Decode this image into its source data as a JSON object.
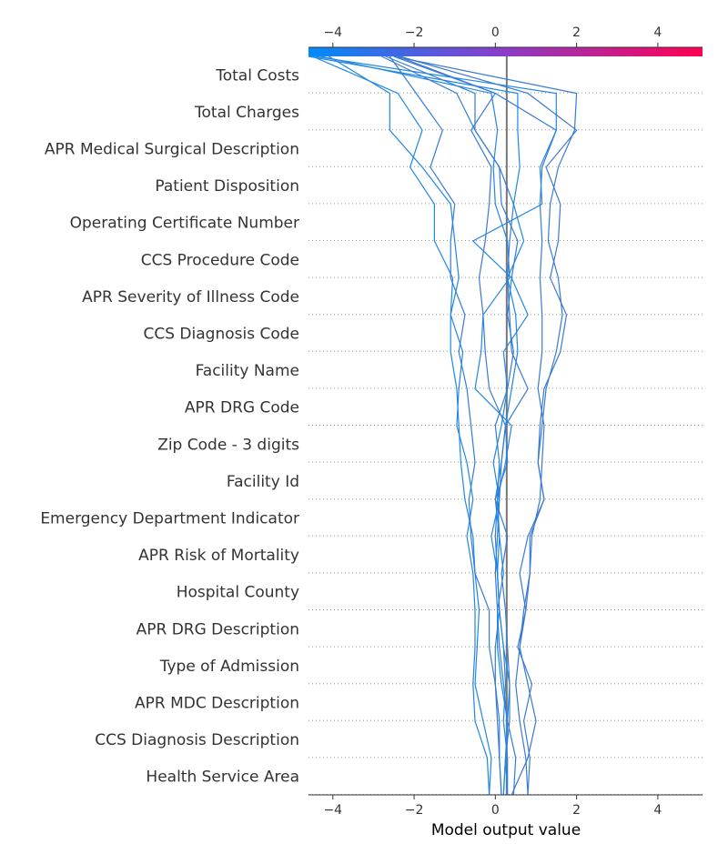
{
  "chart_data": {
    "type": "line",
    "variant": "shap-decision-plot",
    "xlabel": "Model output value",
    "xlim": [
      -4.6,
      5.1
    ],
    "x_ticks": [
      -4,
      -2,
      0,
      2,
      4
    ],
    "x_tick_labels": [
      "−4",
      "−2",
      "0",
      "2",
      "4"
    ],
    "base_value": 0.28,
    "colorbar": {
      "position": "top",
      "low_color": "#008bfb",
      "high_color": "#ff0052"
    },
    "grid": "dotted horizontal per feature",
    "features": [
      "Total Costs",
      "Total Charges",
      "APR Medical Surgical Description",
      "Patient Disposition",
      "Operating Certificate Number",
      "CCS Procedure Code",
      "APR Severity of Illness Code",
      "CCS Diagnosis Code",
      "Facility Name",
      "APR DRG Code",
      "Zip Code - 3 digits",
      "Facility Id",
      "Emergency Department Indicator",
      "APR Risk of Mortality",
      "Hospital County",
      "APR DRG Description",
      "Type of Admission",
      "APR MDC Description",
      "CCS Diagnosis Description",
      "Health Service Area"
    ],
    "series": [
      {
        "values": [
          0.2,
          0.25,
          0.3,
          0.35,
          0.2,
          0.1,
          0.05,
          0.1,
          0.0,
          0.15,
          0.25,
          0.4,
          0.55,
          0.5,
          0.3,
          0.7,
          0.45,
          0.6,
          0.55,
          0.55,
          -4.6
        ]
      },
      {
        "values": [
          0.8,
          0.85,
          0.7,
          0.9,
          0.55,
          0.75,
          0.6,
          0.8,
          1.2,
          1.05,
          1.15,
          1.25,
          1.5,
          1.65,
          1.55,
          1.3,
          1.35,
          1.55,
          1.95,
          2.0,
          -2.5
        ]
      },
      {
        "values": [
          0.8,
          0.75,
          0.6,
          0.5,
          0.6,
          0.75,
          0.85,
          0.9,
          1.1,
          1.15,
          1.2,
          1.05,
          1.15,
          1.15,
          1.1,
          1.15,
          1.1,
          1.15,
          1.5,
          0.0,
          -2.5
        ]
      },
      {
        "values": [
          0.3,
          0.25,
          0.35,
          0.35,
          0.3,
          0.25,
          0.15,
          0.3,
          0.0,
          0.3,
          0.25,
          -0.15,
          -0.25,
          -0.3,
          -0.4,
          -0.25,
          -0.15,
          -0.1,
          -0.6,
          0.0,
          -2.4
        ]
      },
      {
        "values": [
          0.45,
          0.5,
          0.3,
          0.2,
          0.1,
          0.05,
          0.0,
          0.05,
          0.1,
          0.15,
          0.25,
          0.8,
          0.4,
          0.35,
          0.3,
          0.35,
          0.45,
          0.1,
          -0.5,
          -0.5,
          -2.7
        ]
      },
      {
        "values": [
          -0.15,
          -0.1,
          -0.3,
          -0.5,
          -0.45,
          -0.4,
          -0.5,
          -0.55,
          -0.75,
          -0.85,
          -0.9,
          -0.95,
          -1.1,
          -1.1,
          -1.05,
          -1.5,
          -1.5,
          -2.1,
          -1.8,
          -2.4,
          -4.5
        ]
      },
      {
        "values": [
          0.3,
          0.3,
          0.2,
          0.25,
          0.2,
          0.1,
          0.05,
          -0.1,
          0.1,
          -0.05,
          0.15,
          0.3,
          0.2,
          0.8,
          0.4,
          -0.55,
          1.15,
          1.1,
          1.5,
          1.5,
          -4.45
        ]
      },
      {
        "values": [
          0.4,
          0.8,
          1.0,
          0.8,
          0.6,
          0.7,
          0.85,
          0.85,
          1.2,
          1.05,
          1.1,
          1.2,
          1.6,
          1.75,
          1.35,
          1.55,
          1.6,
          1.25,
          2.0,
          0.8,
          -2.35
        ]
      },
      {
        "values": [
          0.15,
          0.1,
          0.05,
          0.0,
          -0.15,
          -0.15,
          -0.5,
          -0.6,
          -0.65,
          -0.5,
          -0.6,
          -0.7,
          -0.9,
          -0.75,
          -1.1,
          -1.1,
          -1.0,
          -1.6,
          -1.3,
          -1.95,
          -2.6
        ]
      },
      {
        "values": [
          -0.15,
          -0.2,
          -0.5,
          -0.55,
          -0.5,
          -0.5,
          -0.55,
          -0.7,
          -0.55,
          -0.7,
          -0.95,
          -0.9,
          -0.8,
          -1.1,
          -0.9,
          -1.0,
          -1.1,
          -1.8,
          -2.6,
          -2.6,
          -4.1
        ]
      },
      {
        "values": [
          0.2,
          0.25,
          0.3,
          0.15,
          0.05,
          0.05,
          0.2,
          0.1,
          0.05,
          0.25,
          0.4,
          -0.5,
          -0.35,
          -0.3,
          0.35,
          0.3,
          0.0,
          -0.05,
          0.05,
          -0.1,
          -4.3
        ]
      },
      {
        "values": [
          0.15,
          0.1,
          0.1,
          0.0,
          0.0,
          0.1,
          0.05,
          0.0,
          0.05,
          0.1,
          0.0,
          0.3,
          0.45,
          0.3,
          0.4,
          0.55,
          0.15,
          0.1,
          -0.5,
          -0.95,
          -2.8
        ]
      }
    ]
  }
}
